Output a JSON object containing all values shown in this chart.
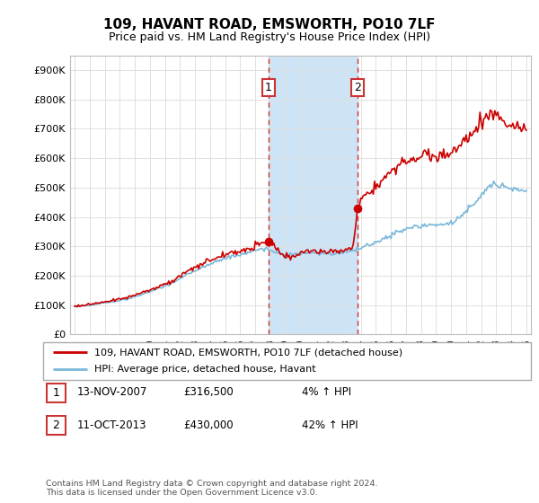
{
  "title": "109, HAVANT ROAD, EMSWORTH, PO10 7LF",
  "subtitle": "Price paid vs. HM Land Registry's House Price Index (HPI)",
  "title_fontsize": 11,
  "subtitle_fontsize": 9,
  "bg_color": "#ffffff",
  "grid_color": "#e0e0e0",
  "ylim": [
    0,
    950000
  ],
  "yticks": [
    0,
    100000,
    200000,
    300000,
    400000,
    500000,
    600000,
    700000,
    800000,
    900000
  ],
  "ytick_labels": [
    "£0",
    "£100K",
    "£200K",
    "£300K",
    "£400K",
    "£500K",
    "£600K",
    "£700K",
    "£800K",
    "£900K"
  ],
  "hpi_color": "#7ab8d9",
  "price_color": "#cc0000",
  "sale1_date_num": 2007.87,
  "sale1_price": 316500,
  "sale2_date_num": 2013.78,
  "sale2_price": 430000,
  "highlight_color": "#cce4f5",
  "vline_color": "#cc3333",
  "legend_label_price": "109, HAVANT ROAD, EMSWORTH, PO10 7LF (detached house)",
  "legend_label_hpi": "HPI: Average price, detached house, Havant",
  "footer_text": "Contains HM Land Registry data © Crown copyright and database right 2024.\nThis data is licensed under the Open Government Licence v3.0.",
  "sale1_date_str": "13-NOV-2007",
  "sale1_price_str": "£316,500",
  "sale1_hpi_str": "4% ↑ HPI",
  "sale2_date_str": "11-OCT-2013",
  "sale2_price_str": "£430,000",
  "sale2_hpi_str": "42% ↑ HPI"
}
